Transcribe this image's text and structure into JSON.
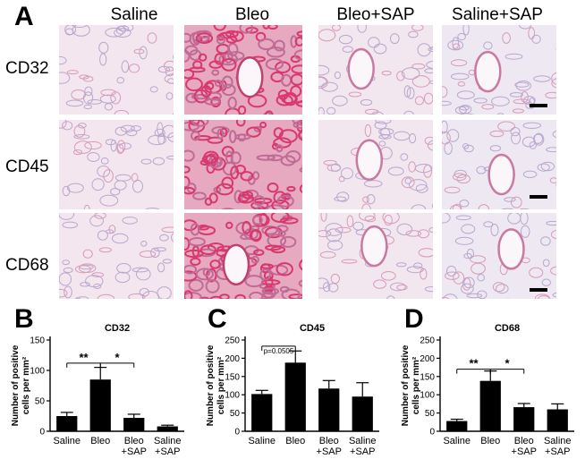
{
  "panel_a": {
    "letter": "A",
    "columns": [
      "Saline",
      "Bleo",
      "Bleo+SAP",
      "Saline+SAP"
    ],
    "rows": [
      "CD32",
      "CD45",
      "CD68"
    ],
    "tile_colors": {
      "Saline": "#f3e6ee",
      "Bleo": "#e7a9c0",
      "Bleo+SAP": "#f2e6ef",
      "Saline+SAP": "#eee8f2"
    }
  },
  "chart_data": [
    {
      "type": "bar",
      "panel": "B",
      "title": "CD32",
      "ylabel": [
        "Number of positive",
        "cells per mm²"
      ],
      "categories": [
        [
          "Saline"
        ],
        [
          "Bleo"
        ],
        [
          "Bleo",
          "+SAP"
        ],
        [
          "Saline",
          "+SAP"
        ]
      ],
      "values": [
        25,
        85,
        22,
        8
      ],
      "errors": [
        6,
        20,
        6,
        2
      ],
      "ylim": [
        0,
        150
      ],
      "yticks": [
        0,
        50,
        100,
        150
      ],
      "annotations": [
        {
          "from": 0,
          "to": 1,
          "text": "**",
          "y": 112
        },
        {
          "from": 1,
          "to": 2,
          "text": "*",
          "y": 112
        }
      ]
    },
    {
      "type": "bar",
      "panel": "C",
      "title": "CD45",
      "ylabel": [
        "Number of positive",
        "cells per mm²"
      ],
      "categories": [
        [
          "Saline"
        ],
        [
          "Bleo"
        ],
        [
          "Bleo",
          "+SAP"
        ],
        [
          "Saline",
          "+SAP"
        ]
      ],
      "values": [
        102,
        188,
        117,
        95
      ],
      "errors": [
        10,
        32,
        22,
        38
      ],
      "ylim": [
        0,
        250
      ],
      "yticks": [
        0,
        50,
        100,
        150,
        200,
        250
      ],
      "annotations": [
        {
          "from": 0,
          "to": 1,
          "text": "p=0.0505",
          "y": 233
        }
      ]
    },
    {
      "type": "bar",
      "panel": "D",
      "title": "CD68",
      "ylabel": [
        "Number of positive",
        "cells per mm²"
      ],
      "categories": [
        [
          "Saline"
        ],
        [
          "Bleo"
        ],
        [
          "Bleo",
          "+SAP"
        ],
        [
          "Saline",
          "+SAP"
        ]
      ],
      "values": [
        28,
        138,
        66,
        60
      ],
      "errors": [
        5,
        27,
        10,
        15
      ],
      "ylim": [
        0,
        250
      ],
      "yticks": [
        0,
        50,
        100,
        150,
        200,
        250
      ],
      "annotations": [
        {
          "from": 0,
          "to": 1,
          "text": "**",
          "y": 170
        },
        {
          "from": 1,
          "to": 2,
          "text": "*",
          "y": 170
        }
      ]
    }
  ]
}
